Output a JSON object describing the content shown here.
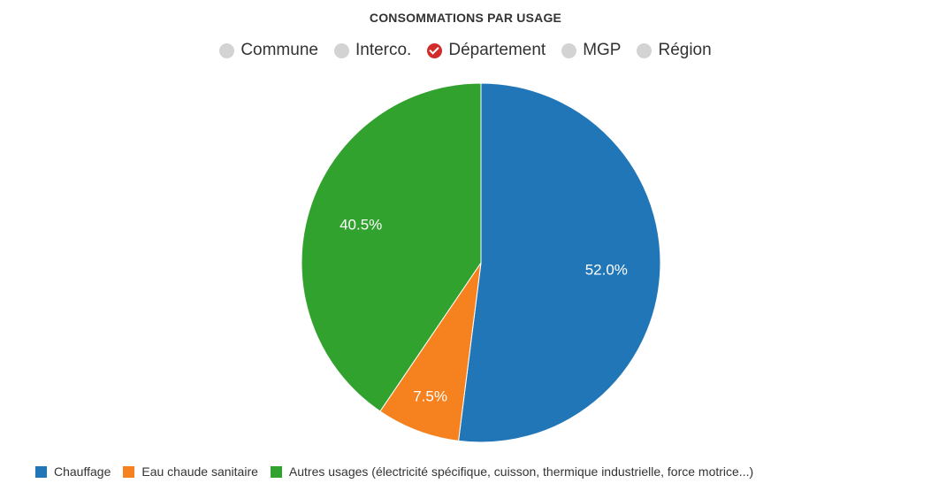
{
  "chart_data": {
    "type": "pie",
    "title": "CONSOMMATIONS PAR USAGE",
    "categories": [
      "Chauffage",
      "Eau chaude sanitaire",
      "Autres usages (électricité spécifique, cuisson, thermique industrielle, force motrice...)"
    ],
    "values": [
      52.0,
      7.5,
      40.5
    ],
    "labels": [
      "52.0%",
      "7.5%",
      "40.5%"
    ],
    "colors": [
      "#2176b8",
      "#f6821f",
      "#31a22e"
    ],
    "legend_position": "bottom"
  },
  "scope": {
    "options": [
      {
        "label": "Commune",
        "selected": false
      },
      {
        "label": "Interco.",
        "selected": false
      },
      {
        "label": "Département",
        "selected": true
      },
      {
        "label": "MGP",
        "selected": false
      },
      {
        "label": "Région",
        "selected": false
      }
    ]
  },
  "colors": {
    "radio_unselected": "#d3d3d3",
    "radio_selected": "#d12b2b"
  }
}
